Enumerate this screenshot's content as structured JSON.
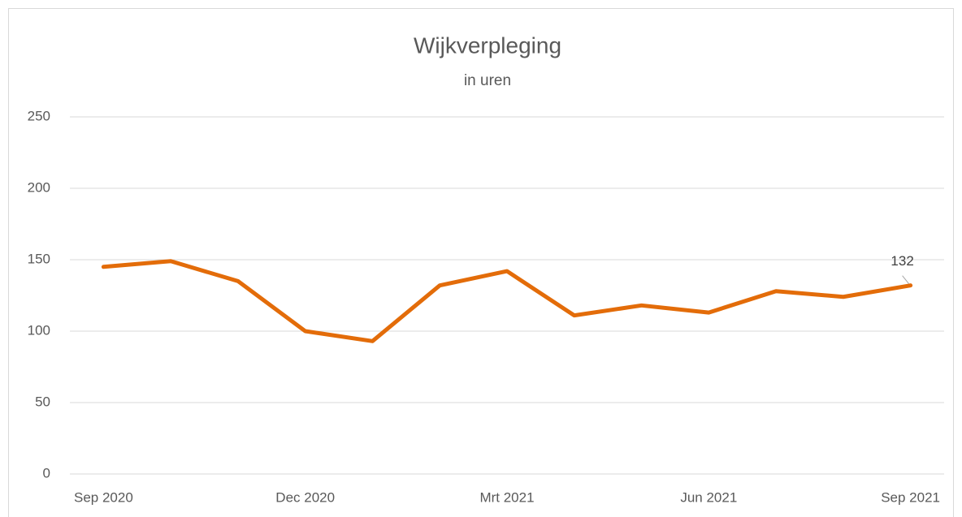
{
  "chart_data": {
    "type": "line",
    "title": "Wijkverpleging",
    "subtitle": "in uren",
    "categories": [
      "Sep 2020",
      null,
      null,
      "Dec 2020",
      null,
      null,
      "Mrt 2021",
      null,
      null,
      "Jun 2021",
      null,
      null,
      "Sep 2021"
    ],
    "series": [
      {
        "name": "Wijkverpleging",
        "color": "#e36c09",
        "values": [
          145,
          149,
          135,
          100,
          93,
          132,
          142,
          111,
          118,
          113,
          128,
          124,
          132
        ],
        "value_labels": [
          null,
          null,
          null,
          null,
          null,
          null,
          null,
          null,
          null,
          null,
          null,
          null,
          "132"
        ]
      }
    ],
    "ylim": [
      0,
      250
    ],
    "yticks": [
      0,
      50,
      100,
      150,
      200,
      250
    ],
    "grid": true
  }
}
